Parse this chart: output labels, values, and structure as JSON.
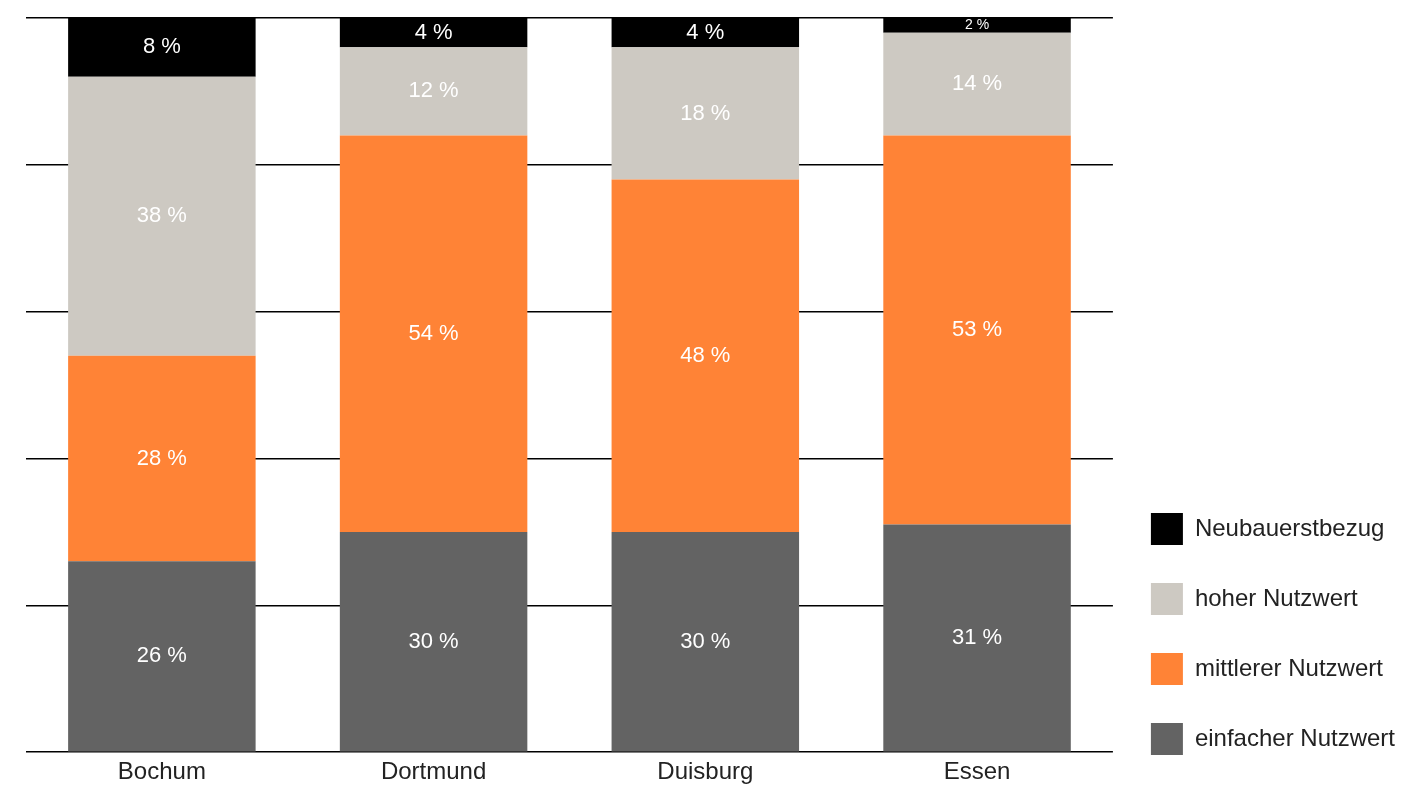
{
  "chart_data": {
    "type": "bar",
    "stacked": true,
    "categories": [
      "Bochum",
      "Dortmund",
      "Duisburg",
      "Essen"
    ],
    "series": [
      {
        "name": "einfacher Nutzwert",
        "color": "#636363",
        "values": [
          26,
          30,
          30,
          31
        ],
        "value_labels": [
          "26 %",
          "30 %",
          "30 %",
          "31 %"
        ]
      },
      {
        "name": "mittlerer Nutzwert",
        "color": "#ff8336",
        "values": [
          28,
          54,
          48,
          53
        ],
        "value_labels": [
          "28 %",
          "54 %",
          "48 %",
          "53 %"
        ]
      },
      {
        "name": "hoher Nutzwert",
        "color": "#cdc9c2",
        "values": [
          38,
          12,
          18,
          14
        ],
        "value_labels": [
          "38 %",
          "12 %",
          "18 %",
          "14 %"
        ]
      },
      {
        "name": "Neubauerstbezug",
        "color": "#000000",
        "values": [
          8,
          4,
          4,
          2
        ],
        "value_labels": [
          "8 %",
          "4 %",
          "4 %",
          "2 %"
        ]
      }
    ],
    "ylim": [
      0,
      100
    ],
    "yticks": [
      {
        "value": 0,
        "label": null
      },
      {
        "value": 20,
        "label": null
      },
      {
        "value": 40,
        "label": null
      },
      {
        "value": 60,
        "label": null
      },
      {
        "value": 80,
        "label": null
      },
      {
        "value": 100,
        "label": null
      }
    ],
    "tick_labels": "x",
    "grid": "y",
    "legend": "bottom right"
  }
}
